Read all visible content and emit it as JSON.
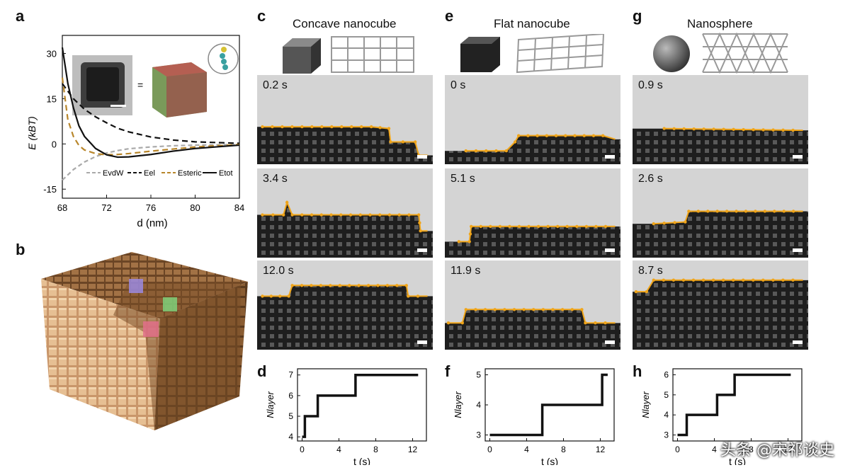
{
  "panel_labels": {
    "a": "a",
    "b": "b",
    "c": "c",
    "d": "d",
    "e": "e",
    "f": "f",
    "g": "g",
    "h": "h"
  },
  "panel_a": {
    "ylabel": "E (kBT)",
    "xlabel": "d (nm)",
    "legend": [
      "EvdW",
      "Eel",
      "Esteric",
      "Etot"
    ],
    "equals": "="
  },
  "columns": [
    {
      "title": "Concave nanocube",
      "times": [
        "0.2 s",
        "3.4 s",
        "12.0 s"
      ]
    },
    {
      "title": "Flat nanocube",
      "times": [
        "0 s",
        "5.1 s",
        "11.9 s"
      ]
    },
    {
      "title": "Nanosphere",
      "times": [
        "0.9 s",
        "2.6 s",
        "8.7 s"
      ]
    }
  ],
  "watermark": "头条 @宋祁谈史",
  "chart_data": [
    {
      "panel": "a",
      "type": "line",
      "xlabel": "d (nm)",
      "ylabel": "E (kBT)",
      "xlim": [
        68,
        84
      ],
      "ylim": [
        -18,
        36
      ],
      "xticks": [
        68,
        72,
        76,
        80,
        84
      ],
      "yticks": [
        30,
        15,
        0,
        -15
      ],
      "legend": "bottom",
      "series": [
        {
          "name": "EvdW",
          "color": "#aaaaaa",
          "dash": "6,4",
          "x": [
            68,
            69,
            70,
            71,
            72,
            73,
            74,
            76,
            78,
            80,
            84
          ],
          "y": [
            -12,
            -8.5,
            -6,
            -4.2,
            -3,
            -2.2,
            -1.6,
            -1,
            -0.6,
            -0.4,
            -0.2
          ]
        },
        {
          "name": "Eel",
          "color": "#111111",
          "dash": "8,5",
          "x": [
            68,
            69,
            70,
            71,
            72,
            73,
            74,
            76,
            78,
            80,
            84
          ],
          "y": [
            20,
            15,
            11.5,
            9,
            7,
            5.2,
            4,
            2.3,
            1.3,
            0.7,
            0.2
          ]
        },
        {
          "name": "Esteric",
          "color": "#b8862b",
          "dash": "8,5",
          "x": [
            68,
            68.5,
            69,
            69.5,
            70,
            71,
            72,
            73,
            74,
            76,
            80,
            84
          ],
          "y": [
            22,
            8,
            2.5,
            -0.5,
            -2,
            -3.2,
            -3.6,
            -3.5,
            -3.2,
            -2.4,
            -1,
            -0.2
          ]
        },
        {
          "name": "Etot",
          "color": "#111111",
          "dash": "",
          "x": [
            68,
            68.5,
            69,
            69.5,
            70,
            71,
            72,
            73,
            74,
            76,
            78,
            80,
            84
          ],
          "y": [
            32,
            20,
            12,
            6,
            2.5,
            -1.5,
            -3.6,
            -4.4,
            -4.3,
            -3.5,
            -2.4,
            -1.5,
            -0.4
          ]
        }
      ]
    },
    {
      "panel": "d",
      "type": "line",
      "ylabel": "Nlayer",
      "xlabel": "t (s)",
      "xlim": [
        -0.5,
        13.5
      ],
      "ylim": [
        3.8,
        7.3
      ],
      "xticks": [
        0,
        4,
        8,
        12
      ],
      "yticks": [
        4,
        5,
        6,
        7
      ],
      "series": [
        {
          "name": "",
          "x": [
            0,
            0.3,
            0.3,
            1.7,
            1.7,
            2.2,
            2.2,
            5.8,
            5.8,
            12.6
          ],
          "y": [
            4,
            4,
            5,
            5,
            6,
            6,
            6,
            6,
            7,
            7
          ]
        }
      ]
    },
    {
      "panel": "f",
      "type": "line",
      "ylabel": "Nlayer",
      "xlabel": "t (s)",
      "xlim": [
        -0.5,
        13.5
      ],
      "ylim": [
        2.8,
        5.2
      ],
      "xticks": [
        0,
        4,
        8,
        12
      ],
      "yticks": [
        3,
        4,
        5
      ],
      "series": [
        {
          "name": "",
          "x": [
            0,
            5.7,
            5.7,
            12.2,
            12.2,
            12.8
          ],
          "y": [
            3,
            3,
            4,
            4,
            5,
            5
          ]
        }
      ]
    },
    {
      "panel": "h",
      "type": "line",
      "ylabel": "Nlayer",
      "xlabel": "t (s)",
      "xlim": [
        -0.5,
        13.5
      ],
      "ylim": [
        2.7,
        6.3
      ],
      "xticks": [
        0,
        4,
        8,
        12
      ],
      "yticks": [
        3,
        4,
        5,
        6
      ],
      "series": [
        {
          "name": "",
          "x": [
            0,
            1,
            1,
            4.3,
            4.3,
            6.2,
            6.2,
            12.3
          ],
          "y": [
            3,
            3,
            4,
            4,
            5,
            5,
            6,
            6
          ]
        }
      ]
    }
  ]
}
